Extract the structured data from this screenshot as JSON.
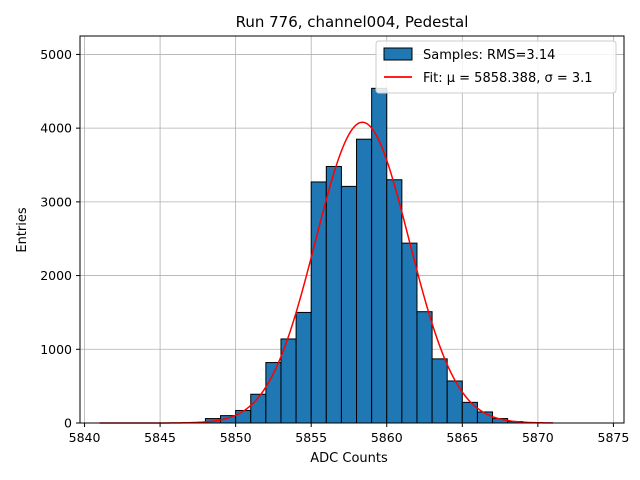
{
  "chart_data": {
    "type": "bar",
    "title": "Run 776, channel004, Pedestal",
    "xlabel": "ADC Counts",
    "ylabel": "Entries",
    "xlim": [
      5839.7,
      5875.7
    ],
    "ylim": [
      0,
      5250
    ],
    "grid": true,
    "xticks": [
      5840,
      5845,
      5850,
      5855,
      5860,
      5865,
      5870,
      5875
    ],
    "yticks": [
      0,
      1000,
      2000,
      3000,
      4000,
      5000
    ],
    "bin_width": 1,
    "bins": [
      {
        "left": 5848,
        "count": 60
      },
      {
        "left": 5849,
        "count": 100
      },
      {
        "left": 5850,
        "count": 170
      },
      {
        "left": 5851,
        "count": 390
      },
      {
        "left": 5852,
        "count": 820
      },
      {
        "left": 5853,
        "count": 1140
      },
      {
        "left": 5854,
        "count": 1500
      },
      {
        "left": 5855,
        "count": 3270
      },
      {
        "left": 5856,
        "count": 3480
      },
      {
        "left": 5857,
        "count": 3210
      },
      {
        "left": 5858,
        "count": 3850
      },
      {
        "left": 5859,
        "count": 4540
      },
      {
        "left": 5860,
        "count": 3300
      },
      {
        "left": 5861,
        "count": 2440
      },
      {
        "left": 5862,
        "count": 1510
      },
      {
        "left": 5863,
        "count": 870
      },
      {
        "left": 5864,
        "count": 570
      },
      {
        "left": 5865,
        "count": 280
      },
      {
        "left": 5866,
        "count": 150
      },
      {
        "left": 5867,
        "count": 60
      },
      {
        "left": 5868,
        "count": 20
      }
    ],
    "fit": {
      "mu": 5858.388,
      "sigma": 3.1,
      "amplitude": 4080,
      "x_range": [
        5841,
        5871
      ]
    },
    "colors": {
      "bar_fill": "#1f77b4",
      "bar_edge": "#000000",
      "fit_line": "#ff0000",
      "grid": "#b0b0b0"
    },
    "legend": {
      "position": "top-right",
      "entries": [
        {
          "label": "Samples: RMS=3.14",
          "kind": "bar"
        },
        {
          "label": "Fit: μ = 5858.388, σ = 3.1",
          "kind": "line"
        }
      ]
    }
  }
}
